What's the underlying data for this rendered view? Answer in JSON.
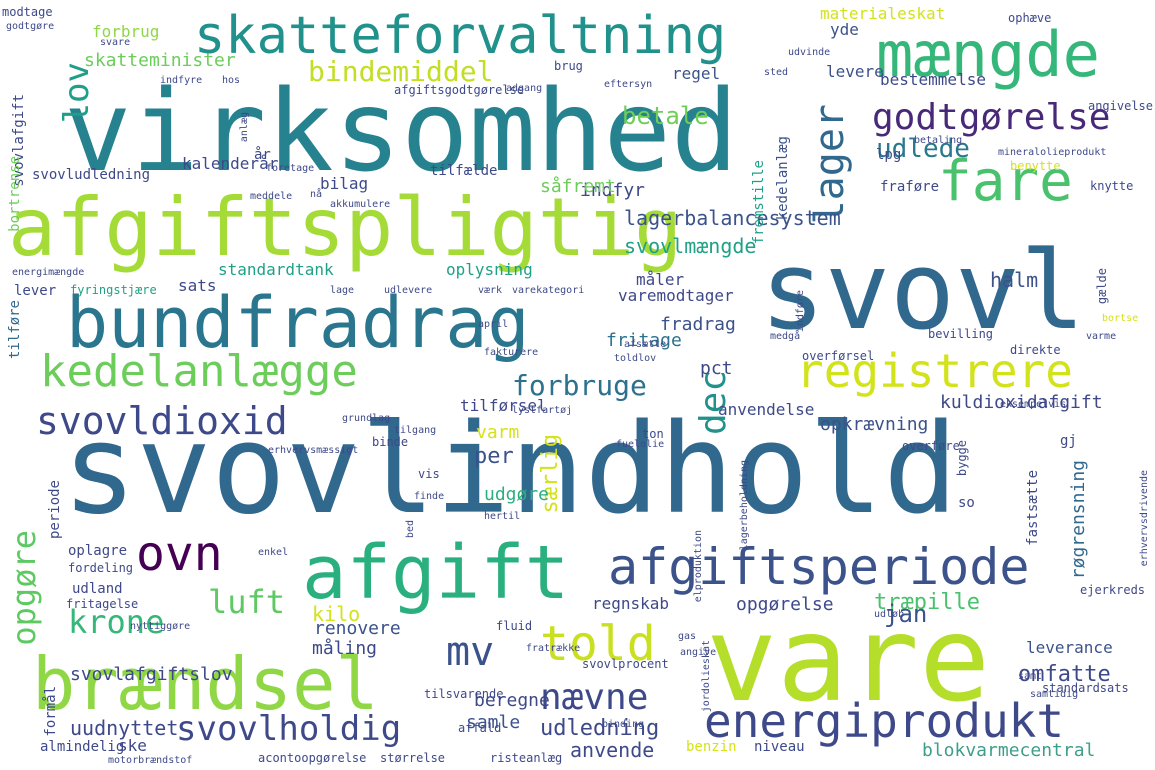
{
  "palette": {
    "dark_purple": "#440154",
    "indigo": "#3b528b",
    "blue": "#31688e",
    "teal": "#21918c",
    "green": "#35b779",
    "lime": "#addc30",
    "yellow": "#e6e419",
    "background": "#ffffff"
  },
  "words": [
    {
      "text": "svovlindhold",
      "color": "#31688e"
    },
    {
      "text": "virksomhed",
      "color": "#26828e"
    },
    {
      "text": "vare",
      "color": "#b5de2b"
    },
    {
      "text": "svovl",
      "color": "#31688e"
    },
    {
      "text": "afgiftspligtig",
      "color": "#a5db36"
    },
    {
      "text": "bundfradrag",
      "color": "#2a768e"
    },
    {
      "text": "skatteforvaltning",
      "color": "#21918c"
    },
    {
      "text": "mængde",
      "color": "#35b779"
    },
    {
      "text": "afgift",
      "color": "#2ab07f"
    },
    {
      "text": "brændsel",
      "color": "#8fd744"
    },
    {
      "text": "afgiftsperiode",
      "color": "#3b528b"
    },
    {
      "text": "energiprodukt",
      "color": "#3e4989"
    },
    {
      "text": "kedelanlægge",
      "color": "#6ccd5a"
    },
    {
      "text": "registrere",
      "color": "#d2e21b"
    },
    {
      "text": "fare",
      "color": "#4ac16d"
    },
    {
      "text": "told",
      "color": "#c8e020"
    },
    {
      "text": "ovn",
      "color": "#440154"
    },
    {
      "text": "svovldioxid",
      "color": "#3e4989"
    },
    {
      "text": "godtgørelse",
      "color": "#482878"
    },
    {
      "text": "lager",
      "color": "#31688e"
    },
    {
      "text": "opgøre",
      "color": "#5ec962"
    },
    {
      "text": "nævne",
      "color": "#3e4989"
    },
    {
      "text": "mv",
      "color": "#3b528b"
    },
    {
      "text": "svovlholdig",
      "color": "#3e4989"
    },
    {
      "text": "krone",
      "color": "#35b779"
    },
    {
      "text": "luft",
      "color": "#5ec962"
    },
    {
      "text": "lov",
      "color": "#1f9e89"
    },
    {
      "text": "bindemiddel",
      "color": "#c2df23"
    },
    {
      "text": "dec",
      "color": "#21918c"
    },
    {
      "text": "forbruge",
      "color": "#2c728e"
    },
    {
      "text": "lagerbalancesystem",
      "color": "#3b528b"
    },
    {
      "text": "udlede",
      "color": "#2a788e"
    },
    {
      "text": "kuldioxidafgift",
      "color": "#3e4989"
    },
    {
      "text": "opkrævning",
      "color": "#3b528b"
    },
    {
      "text": "svovlmængde",
      "color": "#1fa187"
    },
    {
      "text": "betale",
      "color": "#6ece58"
    },
    {
      "text": "træpille",
      "color": "#4ac16d"
    },
    {
      "text": "jan",
      "color": "#3b528b"
    },
    {
      "text": "omfatte",
      "color": "#3e4989"
    },
    {
      "text": "udledning",
      "color": "#3e4989"
    },
    {
      "text": "anvende",
      "color": "#3e4989"
    },
    {
      "text": "uudnyttet",
      "color": "#3e4989"
    },
    {
      "text": "blokvarmecentral",
      "color": "#3e9e89"
    },
    {
      "text": "røgrensning",
      "color": "#31688e"
    },
    {
      "text": "svovlafgiftslov",
      "color": "#3e4989"
    },
    {
      "text": "skatteminister",
      "color": "#6ccd5a"
    },
    {
      "text": "halm",
      "color": "#3b528b"
    },
    {
      "text": "fradrag",
      "color": "#3b528b"
    },
    {
      "text": "fritage",
      "color": "#2c728e"
    },
    {
      "text": "pct",
      "color": "#3e4989"
    },
    {
      "text": "varm",
      "color": "#d5e21a"
    },
    {
      "text": "per",
      "color": "#3b528b"
    },
    {
      "text": "særlig",
      "color": "#d2e21b"
    },
    {
      "text": "udgøre",
      "color": "#2ab07f"
    },
    {
      "text": "kilo",
      "color": "#d2e21b"
    },
    {
      "text": "renovere",
      "color": "#3b528b"
    },
    {
      "text": "måling",
      "color": "#3e4989"
    },
    {
      "text": "beregne",
      "color": "#3e4989"
    },
    {
      "text": "samle",
      "color": "#3b528b"
    },
    {
      "text": "opgørelse",
      "color": "#3e4989"
    },
    {
      "text": "regnskab",
      "color": "#3e4989"
    },
    {
      "text": "leverance",
      "color": "#3b528b"
    },
    {
      "text": "forbrug",
      "color": "#8fd744"
    },
    {
      "text": "materialeskat",
      "color": "#d2e21b"
    },
    {
      "text": "yde",
      "color": "#3b528b"
    },
    {
      "text": "regel",
      "color": "#3b528b"
    },
    {
      "text": "levere",
      "color": "#3b528b"
    },
    {
      "text": "bestemmelse",
      "color": "#3e4989"
    },
    {
      "text": "kedelanlæg",
      "color": "#3b528b"
    },
    {
      "text": "fremstille",
      "color": "#1fa187"
    },
    {
      "text": "standardtank",
      "color": "#1fa187"
    },
    {
      "text": "sats",
      "color": "#3e4989"
    },
    {
      "text": "oplysning",
      "color": "#1fa187"
    },
    {
      "text": "måler",
      "color": "#3e4989"
    },
    {
      "text": "varemodtager",
      "color": "#3e4989"
    },
    {
      "text": "anvendelse",
      "color": "#3e4989"
    },
    {
      "text": "tilførsel",
      "color": "#3e4989"
    },
    {
      "text": "indfyr",
      "color": "#3e4989"
    },
    {
      "text": "såfremt",
      "color": "#6ccd5a"
    },
    {
      "text": "bilag",
      "color": "#3e4989"
    },
    {
      "text": "kalenderår",
      "color": "#3e4989"
    },
    {
      "text": "svovludledning",
      "color": "#3e4989"
    },
    {
      "text": "svovlafgift",
      "color": "#3e4989"
    },
    {
      "text": "bortrense",
      "color": "#6ccd5a"
    },
    {
      "text": "tilføre",
      "color": "#31688e"
    },
    {
      "text": "lever",
      "color": "#3e4989"
    },
    {
      "text": "fyringstjære",
      "color": "#1fa187"
    },
    {
      "text": "energimængde",
      "color": "#3e4989"
    },
    {
      "text": "udland",
      "color": "#3e4989"
    },
    {
      "text": "oplagre",
      "color": "#3e4989"
    },
    {
      "text": "fordeling",
      "color": "#3e4989"
    },
    {
      "text": "fritagelse",
      "color": "#3e4989"
    },
    {
      "text": "almindelig",
      "color": "#3e4989"
    },
    {
      "text": "ske",
      "color": "#3e4989"
    },
    {
      "text": "formål",
      "color": "#3e4989"
    },
    {
      "text": "periode",
      "color": "#3e4989"
    },
    {
      "text": "tilfælde",
      "color": "#3e4989"
    },
    {
      "text": "foretage",
      "color": "#3e4989"
    },
    {
      "text": "år",
      "color": "#3e4989"
    },
    {
      "text": "anlæg",
      "color": "#3e4989"
    },
    {
      "text": "hos",
      "color": "#3e4989"
    },
    {
      "text": "indfyre",
      "color": "#3e4989"
    },
    {
      "text": "modtage",
      "color": "#3e4989"
    },
    {
      "text": "godtgøre",
      "color": "#3e4989"
    },
    {
      "text": "afgiftsgodtgørelse",
      "color": "#3e4989"
    },
    {
      "text": "adgang",
      "color": "#3e4989"
    },
    {
      "text": "eftersyn",
      "color": "#3e4989"
    },
    {
      "text": "brug",
      "color": "#3e4989"
    },
    {
      "text": "sted",
      "color": "#3e4989"
    },
    {
      "text": "udvinde",
      "color": "#3e4989"
    },
    {
      "text": "ophæve",
      "color": "#3e4989"
    },
    {
      "text": "angivelse",
      "color": "#3e4989"
    },
    {
      "text": "betaling",
      "color": "#3e4989"
    },
    {
      "text": "lpg",
      "color": "#3e4989"
    },
    {
      "text": "benytte",
      "color": "#d5e21a"
    },
    {
      "text": "mineralolieprodukt",
      "color": "#3e4989"
    },
    {
      "text": "knytte",
      "color": "#3e4989"
    },
    {
      "text": "fraføre",
      "color": "#3e4989"
    },
    {
      "text": "gælde",
      "color": "#3e4989"
    },
    {
      "text": "varme",
      "color": "#3e4989"
    },
    {
      "text": "bortse",
      "color": "#d5e21a"
    },
    {
      "text": "bevilling",
      "color": "#3e4989"
    },
    {
      "text": "direkte",
      "color": "#3e4989"
    },
    {
      "text": "overførsel",
      "color": "#3e4989"
    },
    {
      "text": "medgå",
      "color": "#3e4989"
    },
    {
      "text": "toldlov",
      "color": "#3e4989"
    },
    {
      "text": "afsætte",
      "color": "#3e4989"
    },
    {
      "text": "lystfartøj",
      "color": "#3e4989"
    },
    {
      "text": "gj",
      "color": "#3e4989"
    },
    {
      "text": "ton",
      "color": "#3e4989"
    },
    {
      "text": "fuelolie",
      "color": "#3e4989"
    },
    {
      "text": "overføre",
      "color": "#3e4989"
    },
    {
      "text": "binde",
      "color": "#3e4989"
    },
    {
      "text": "tilgang",
      "color": "#3e4989"
    },
    {
      "text": "grundlag",
      "color": "#3e4989"
    },
    {
      "text": "erhvervsmæssigt",
      "color": "#3e4989"
    },
    {
      "text": "vis",
      "color": "#3e4989"
    },
    {
      "text": "finde",
      "color": "#3e4989"
    },
    {
      "text": "hertil",
      "color": "#3e4989"
    },
    {
      "text": "so",
      "color": "#3e4989"
    },
    {
      "text": "fastsætte",
      "color": "#3e4989"
    },
    {
      "text": "bygge",
      "color": "#3e4989"
    },
    {
      "text": "ejerkreds",
      "color": "#3e4989"
    },
    {
      "text": "enkel",
      "color": "#3e4989"
    },
    {
      "text": "bed",
      "color": "#3e4989"
    },
    {
      "text": "fratrække",
      "color": "#3e4989"
    },
    {
      "text": "fluid",
      "color": "#3e4989"
    },
    {
      "text": "nyttiggøre",
      "color": "#3e4989"
    },
    {
      "text": "gas",
      "color": "#3e4989"
    },
    {
      "text": "angive",
      "color": "#3e4989"
    },
    {
      "text": "jordolieskat",
      "color": "#3e4989"
    },
    {
      "text": "samt",
      "color": "#3e4989"
    },
    {
      "text": "samtidig",
      "color": "#3e4989"
    },
    {
      "text": "standardsats",
      "color": "#3e4989"
    },
    {
      "text": "tilsvarende",
      "color": "#3e4989"
    },
    {
      "text": "svovlprocent",
      "color": "#3e4989"
    },
    {
      "text": "affald",
      "color": "#3e4989"
    },
    {
      "text": "binding",
      "color": "#3e4989"
    },
    {
      "text": "benzin",
      "color": "#d5e21a"
    },
    {
      "text": "niveau",
      "color": "#3e4989"
    },
    {
      "text": "acontoopgørelse",
      "color": "#3e4989"
    },
    {
      "text": "størrelse",
      "color": "#3e4989"
    },
    {
      "text": "risteanlæg",
      "color": "#3e4989"
    },
    {
      "text": "motorbrændstof",
      "color": "#3e4989"
    },
    {
      "text": "fakturere",
      "color": "#3e4989"
    },
    {
      "text": "lage",
      "color": "#3e4989"
    },
    {
      "text": "udlevere",
      "color": "#3e4989"
    },
    {
      "text": "værk",
      "color": "#3e4989"
    },
    {
      "text": "varekategori",
      "color": "#3e4989"
    },
    {
      "text": "akkumulere",
      "color": "#3e4989"
    },
    {
      "text": "nå",
      "color": "#3e4989"
    },
    {
      "text": "meddele",
      "color": "#3e4989"
    },
    {
      "text": "svare",
      "color": "#3e4989"
    },
    {
      "text": "eksempelvis",
      "color": "#3e4989"
    },
    {
      "text": "lagerbeholdning",
      "color": "#3e4989"
    },
    {
      "text": "elproduktion",
      "color": "#3e4989"
    },
    {
      "text": "udløb",
      "color": "#3e4989"
    },
    {
      "text": "erhvervsdrivende",
      "color": "#3e4989"
    },
    {
      "text": "indføre",
      "color": "#3e4989"
    },
    {
      "text": "april",
      "color": "#3e4989"
    }
  ]
}
